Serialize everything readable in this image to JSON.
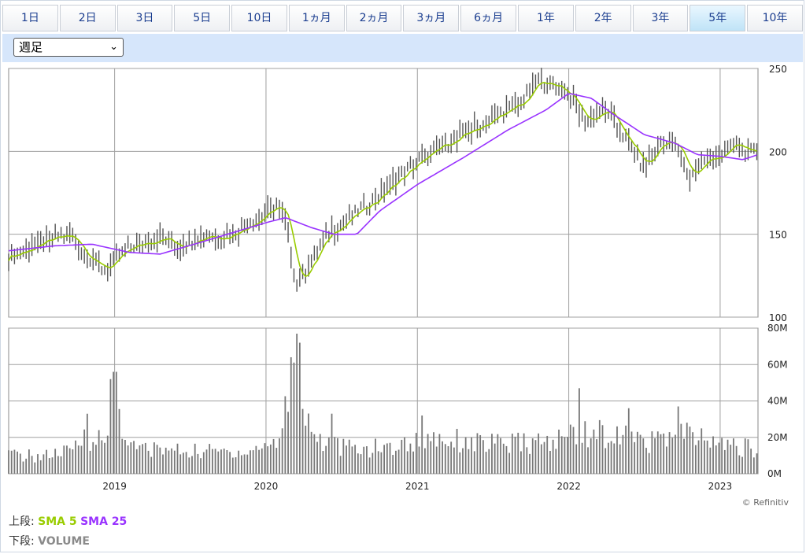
{
  "tabs": [
    "1日",
    "2日",
    "3日",
    "5日",
    "10日",
    "1ヵ月",
    "2ヵ月",
    "3ヵ月",
    "6ヵ月",
    "1年",
    "2年",
    "3年",
    "5年",
    "10年"
  ],
  "active_tab": 12,
  "period_select": "週足",
  "credit": "© Refinitiv",
  "legend": {
    "upper_label": "上段:",
    "sma5": "SMA 5",
    "sma25": "SMA 25",
    "lower_label": "下段:",
    "volume": "VOLUME"
  },
  "colors": {
    "sma5": "#99cc00",
    "sma25": "#9933ff",
    "bars": "#555555",
    "volume": "#777777"
  },
  "chart_data": {
    "type": "line",
    "price_axis": {
      "ylim": [
        100,
        250
      ],
      "ticks": [
        100,
        150,
        200,
        250
      ]
    },
    "volume_axis": {
      "ylim": [
        0,
        80
      ],
      "ticks": [
        0,
        20,
        40,
        60,
        80
      ],
      "tick_labels": [
        "0M",
        "20M",
        "40M",
        "60M",
        "80M"
      ]
    },
    "x_axis": {
      "range": [
        2018.3,
        2023.25
      ],
      "tick_labels": [
        "2019",
        "2020",
        "2021",
        "2022",
        "2023"
      ],
      "tick_values": [
        2019,
        2020,
        2021,
        2022,
        2023
      ]
    },
    "price_anchors": [
      [
        2018.3,
        137
      ],
      [
        2018.45,
        142
      ],
      [
        2018.65,
        149
      ],
      [
        2018.72,
        148
      ],
      [
        2018.8,
        138
      ],
      [
        2018.93,
        128
      ],
      [
        2018.97,
        132
      ],
      [
        2019.1,
        142
      ],
      [
        2019.3,
        148
      ],
      [
        2019.42,
        143
      ],
      [
        2019.6,
        150
      ],
      [
        2019.7,
        148
      ],
      [
        2019.8,
        152
      ],
      [
        2019.95,
        160
      ],
      [
        2020.07,
        167
      ],
      [
        2020.12,
        162
      ],
      [
        2020.2,
        120
      ],
      [
        2020.27,
        130
      ],
      [
        2020.4,
        150
      ],
      [
        2020.55,
        160
      ],
      [
        2020.7,
        170
      ],
      [
        2020.85,
        182
      ],
      [
        2020.95,
        190
      ],
      [
        2021.1,
        200
      ],
      [
        2021.3,
        210
      ],
      [
        2021.5,
        220
      ],
      [
        2021.7,
        230
      ],
      [
        2021.78,
        242
      ],
      [
        2021.9,
        240
      ],
      [
        2022.0,
        235
      ],
      [
        2022.1,
        218
      ],
      [
        2022.25,
        225
      ],
      [
        2022.35,
        210
      ],
      [
        2022.5,
        190
      ],
      [
        2022.6,
        206
      ],
      [
        2022.7,
        205
      ],
      [
        2022.75,
        193
      ],
      [
        2022.8,
        185
      ],
      [
        2022.9,
        195
      ],
      [
        2023.0,
        197
      ],
      [
        2023.1,
        205
      ],
      [
        2023.2,
        198
      ],
      [
        2023.25,
        200
      ]
    ],
    "volume_anchors": [
      [
        2018.3,
        11
      ],
      [
        2018.5,
        10
      ],
      [
        2018.72,
        13
      ],
      [
        2018.8,
        22
      ],
      [
        2018.95,
        18
      ],
      [
        2019.0,
        42
      ],
      [
        2019.1,
        15
      ],
      [
        2019.5,
        13
      ],
      [
        2019.9,
        13
      ],
      [
        2020.1,
        20
      ],
      [
        2020.17,
        65
      ],
      [
        2020.22,
        48
      ],
      [
        2020.3,
        25
      ],
      [
        2020.4,
        17
      ],
      [
        2020.6,
        14
      ],
      [
        2020.9,
        16
      ],
      [
        2021.05,
        22
      ],
      [
        2021.5,
        17
      ],
      [
        2021.9,
        18
      ],
      [
        2022.05,
        25
      ],
      [
        2022.3,
        22
      ],
      [
        2022.5,
        18
      ],
      [
        2022.75,
        23
      ],
      [
        2023.0,
        17
      ],
      [
        2023.25,
        14
      ]
    ],
    "volume_spikes": [
      [
        2018.82,
        33
      ],
      [
        2018.98,
        52
      ],
      [
        2019.0,
        56
      ],
      [
        2020.17,
        64
      ],
      [
        2020.2,
        77
      ],
      [
        2020.23,
        72
      ],
      [
        2020.43,
        33
      ],
      [
        2021.03,
        32
      ],
      [
        2022.07,
        47
      ],
      [
        2022.4,
        36
      ],
      [
        2022.72,
        37
      ]
    ],
    "sma25_anchors": [
      [
        2018.3,
        140
      ],
      [
        2018.6,
        143
      ],
      [
        2018.85,
        144
      ],
      [
        2019.1,
        139
      ],
      [
        2019.3,
        138
      ],
      [
        2019.6,
        146
      ],
      [
        2020.0,
        157
      ],
      [
        2020.13,
        160
      ],
      [
        2020.3,
        154
      ],
      [
        2020.45,
        150
      ],
      [
        2020.6,
        150
      ],
      [
        2020.75,
        164
      ],
      [
        2021.0,
        180
      ],
      [
        2021.3,
        196
      ],
      [
        2021.6,
        213
      ],
      [
        2021.85,
        225
      ],
      [
        2022.0,
        235
      ],
      [
        2022.15,
        232
      ],
      [
        2022.3,
        222
      ],
      [
        2022.5,
        210
      ],
      [
        2022.7,
        205
      ],
      [
        2022.85,
        198
      ],
      [
        2023.0,
        197
      ],
      [
        2023.15,
        195
      ],
      [
        2023.25,
        198
      ]
    ]
  }
}
